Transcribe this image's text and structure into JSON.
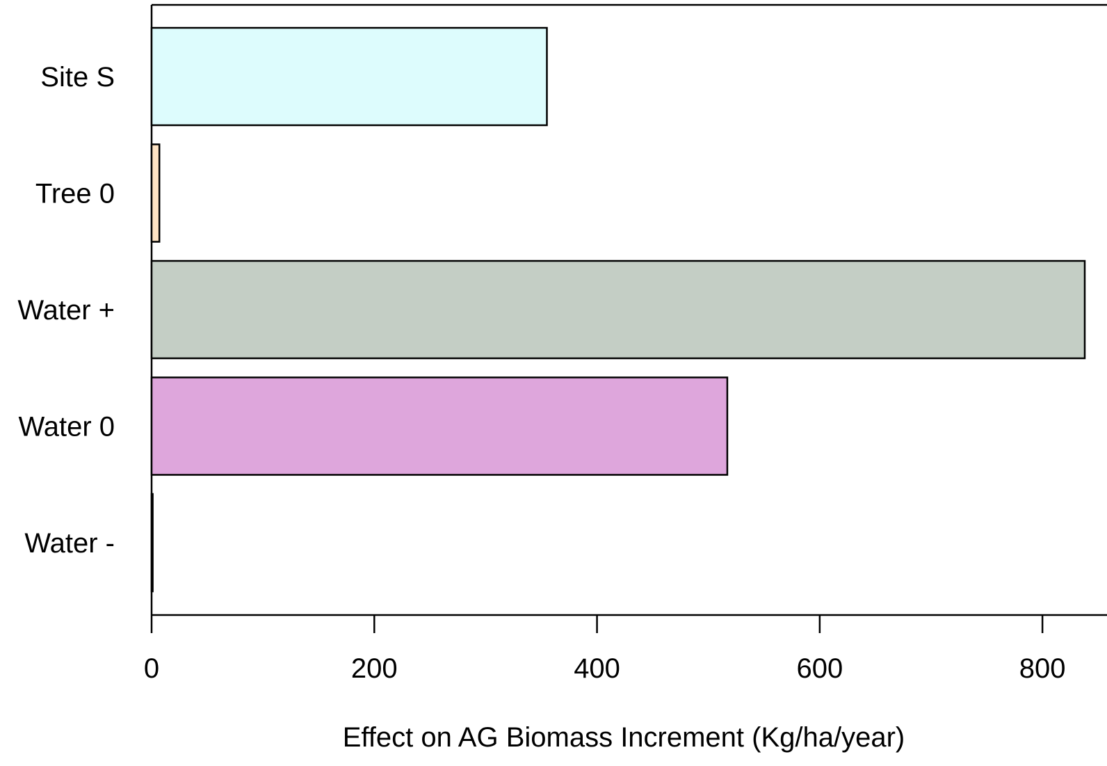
{
  "chart_data": {
    "type": "bar",
    "orientation": "horizontal",
    "categories": [
      "Site S",
      "Tree 0",
      "Water +",
      "Water 0",
      "Water -"
    ],
    "values": [
      355,
      7,
      838,
      517,
      1
    ],
    "colors": [
      "#ddfcfd",
      "#ffe4c4",
      "#c4cec5",
      "#dea6dc",
      "#ffffff"
    ],
    "xlabel": "Effect on AG Biomass Increment (Kg/ha/year)",
    "ylabel": "",
    "title": "",
    "xlim": [
      0,
      838
    ],
    "xticks": [
      0,
      200,
      400,
      600,
      800
    ],
    "xtick_labels": [
      "0",
      "200",
      "400",
      "600",
      "800"
    ],
    "grid": false,
    "legend": false
  }
}
